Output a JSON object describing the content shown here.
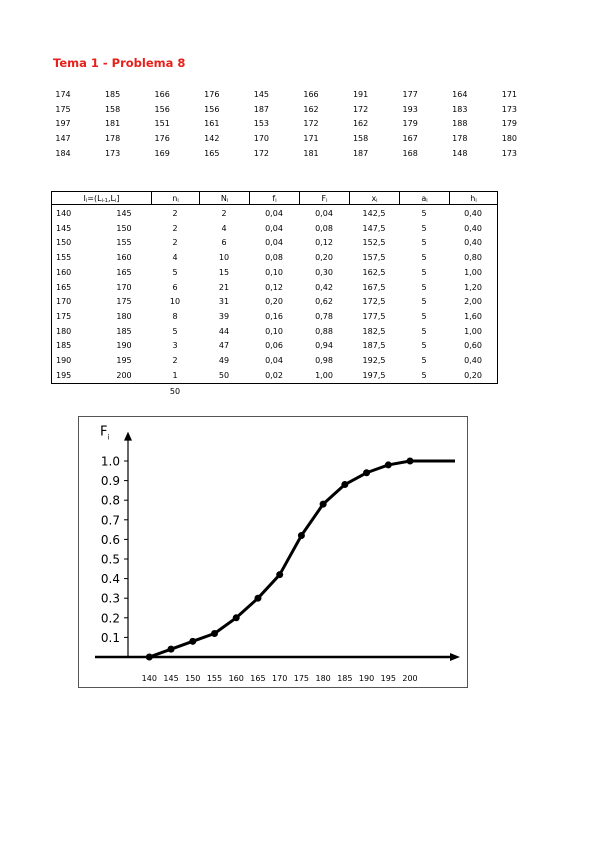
{
  "title": "Tema 1 - Problema 8",
  "raw_data": [
    [
      "174",
      "185",
      "166",
      "176",
      "145",
      "166",
      "191",
      "177",
      "164",
      "171"
    ],
    [
      "175",
      "158",
      "156",
      "156",
      "187",
      "162",
      "172",
      "193",
      "183",
      "173"
    ],
    [
      "197",
      "181",
      "151",
      "161",
      "153",
      "172",
      "162",
      "179",
      "188",
      "179"
    ],
    [
      "147",
      "178",
      "176",
      "142",
      "170",
      "171",
      "158",
      "167",
      "178",
      "180"
    ],
    [
      "184",
      "173",
      "169",
      "165",
      "172",
      "181",
      "187",
      "168",
      "148",
      "173"
    ]
  ],
  "table": {
    "header": [
      [
        "I",
        "i",
        "=(L",
        "i-1",
        ",L",
        "i",
        "]"
      ],
      [
        "n",
        "i"
      ],
      [
        "N",
        "i"
      ],
      [
        "f",
        "i"
      ],
      [
        "F",
        "i"
      ],
      [
        "x",
        "i"
      ],
      [
        "a",
        "i"
      ],
      [
        "h",
        "i"
      ]
    ],
    "rows": [
      [
        "140",
        "145",
        "2",
        "2",
        "0,04",
        "0,04",
        "142,5",
        "5",
        "0,40"
      ],
      [
        "145",
        "150",
        "2",
        "4",
        "0,04",
        "0,08",
        "147,5",
        "5",
        "0,40"
      ],
      [
        "150",
        "155",
        "2",
        "6",
        "0,04",
        "0,12",
        "152,5",
        "5",
        "0,40"
      ],
      [
        "155",
        "160",
        "4",
        "10",
        "0,08",
        "0,20",
        "157,5",
        "5",
        "0,80"
      ],
      [
        "160",
        "165",
        "5",
        "15",
        "0,10",
        "0,30",
        "162,5",
        "5",
        "1,00"
      ],
      [
        "165",
        "170",
        "6",
        "21",
        "0,12",
        "0,42",
        "167,5",
        "5",
        "1,20"
      ],
      [
        "170",
        "175",
        "10",
        "31",
        "0,20",
        "0,62",
        "172,5",
        "5",
        "2,00"
      ],
      [
        "175",
        "180",
        "8",
        "39",
        "0,16",
        "0,78",
        "177,5",
        "5",
        "1,60"
      ],
      [
        "180",
        "185",
        "5",
        "44",
        "0,10",
        "0,88",
        "182,5",
        "5",
        "1,00"
      ],
      [
        "185",
        "190",
        "3",
        "47",
        "0,06",
        "0,94",
        "187,5",
        "5",
        "0,60"
      ],
      [
        "190",
        "195",
        "2",
        "49",
        "0,04",
        "0,98",
        "192,5",
        "5",
        "0,40"
      ],
      [
        "195",
        "200",
        "1",
        "50",
        "0,02",
        "1,00",
        "197,5",
        "5",
        "0,20"
      ]
    ],
    "total": "50"
  },
  "chart_data": {
    "type": "line",
    "y_label": [
      "F",
      "i"
    ],
    "color": "#000000",
    "x": [
      140,
      145,
      150,
      155,
      160,
      165,
      170,
      175,
      180,
      185,
      190,
      195,
      200
    ],
    "values": [
      0,
      0.04,
      0.08,
      0.12,
      0.2,
      0.3,
      0.42,
      0.62,
      0.78,
      0.88,
      0.94,
      0.98,
      1
    ],
    "xlim": [
      127.5,
      211.5
    ],
    "ylim": [
      0,
      1.15
    ],
    "xticks": [
      140,
      145,
      150,
      155,
      160,
      165,
      170,
      175,
      180,
      185,
      190,
      195,
      200
    ],
    "yticks": [
      0.1,
      0.2,
      0.3,
      0.4,
      0.5,
      0.6,
      0.7,
      0.8,
      0.9,
      {
        "value": 1,
        "label": "1.0"
      }
    ]
  }
}
